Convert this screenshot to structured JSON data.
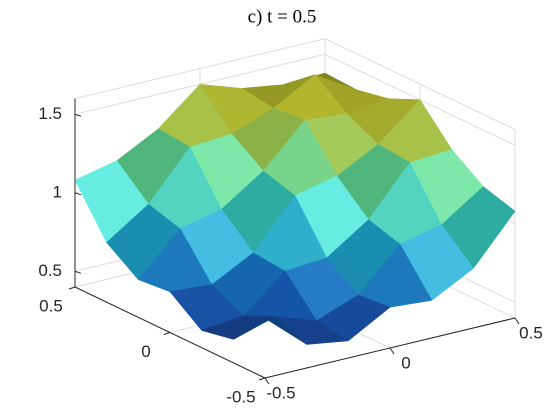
{
  "chart_data": {
    "type": "surface",
    "title": "c) t = 0.5",
    "x": [
      -0.5,
      -0.333,
      -0.167,
      0,
      0.167,
      0.333,
      0.5
    ],
    "y": [
      -0.5,
      -0.333,
      -0.167,
      0,
      0.167,
      0.333,
      0.5
    ],
    "z": [
      [
        0.78,
        0.55,
        0.51,
        0.66,
        0.64,
        0.78,
        1.08
      ],
      [
        0.55,
        0.63,
        0.54,
        0.64,
        0.9,
        0.96,
        1.14
      ],
      [
        0.51,
        0.54,
        0.76,
        0.78,
        0.96,
        1.26,
        1.28
      ],
      [
        0.66,
        0.64,
        0.78,
        1.08,
        1.14,
        1.28,
        1.5
      ],
      [
        0.64,
        0.9,
        0.96,
        1.14,
        1.4,
        1.38,
        1.41
      ],
      [
        0.78,
        0.96,
        1.26,
        1.28,
        1.38,
        1.53,
        1.37
      ],
      [
        1.08,
        1.14,
        1.28,
        1.5,
        1.41,
        1.37,
        1.38
      ]
    ],
    "xlim": [
      -0.5,
      0.5
    ],
    "ylim": [
      -0.5,
      0.5
    ],
    "zlim": [
      0.4,
      1.6
    ],
    "xticks": [
      -0.5,
      0,
      0.5
    ],
    "yticks": [
      -0.5,
      0,
      0.5
    ],
    "zticks": [
      0.5,
      1,
      1.5
    ],
    "grid": true,
    "colormap": [
      "#2b2a8c",
      "#1565c0",
      "#14a0b4",
      "#3cbc8c",
      "#b8c438",
      "#f8e61c"
    ]
  }
}
